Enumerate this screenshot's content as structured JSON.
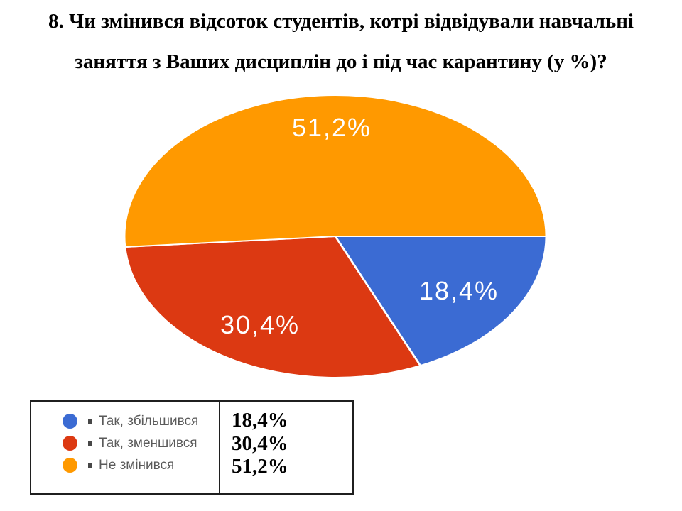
{
  "title": {
    "line1": "8. Чи змінився відсоток студентів, котрі відвідували навчальні",
    "line2": "заняття з Ваших дисциплін до і під час карантину (у %)?"
  },
  "chart_data": {
    "type": "pie",
    "title": "8. Чи змінився відсоток студентів, котрі відвідували навчальні заняття з Ваших дисциплін до і під час карантину (у %)?",
    "categories": [
      "Так, збільшився",
      "Так, зменшився",
      "Не змінився"
    ],
    "values": [
      18.4,
      30.4,
      51.2
    ],
    "labels": [
      "18,4%",
      "30,4%",
      "51,2%"
    ],
    "colors": [
      "#3B6BD3",
      "#DC3912",
      "#FF9900"
    ],
    "slice_border_color": "#FFFFFF",
    "label_color": "#FFFFFF",
    "start_angle_deg": 0,
    "direction": "clockwise",
    "legend_position": "bottom-left box"
  },
  "legend": {
    "items": [
      {
        "label": "Так, збільшився",
        "color": "#3B6BD3",
        "value_label": "18,4%"
      },
      {
        "label": "Так, зменшився",
        "color": "#DC3912",
        "value_label": "30,4%"
      },
      {
        "label": "Не змінився",
        "color": "#FF9900",
        "value_label": "51,2%"
      }
    ]
  }
}
